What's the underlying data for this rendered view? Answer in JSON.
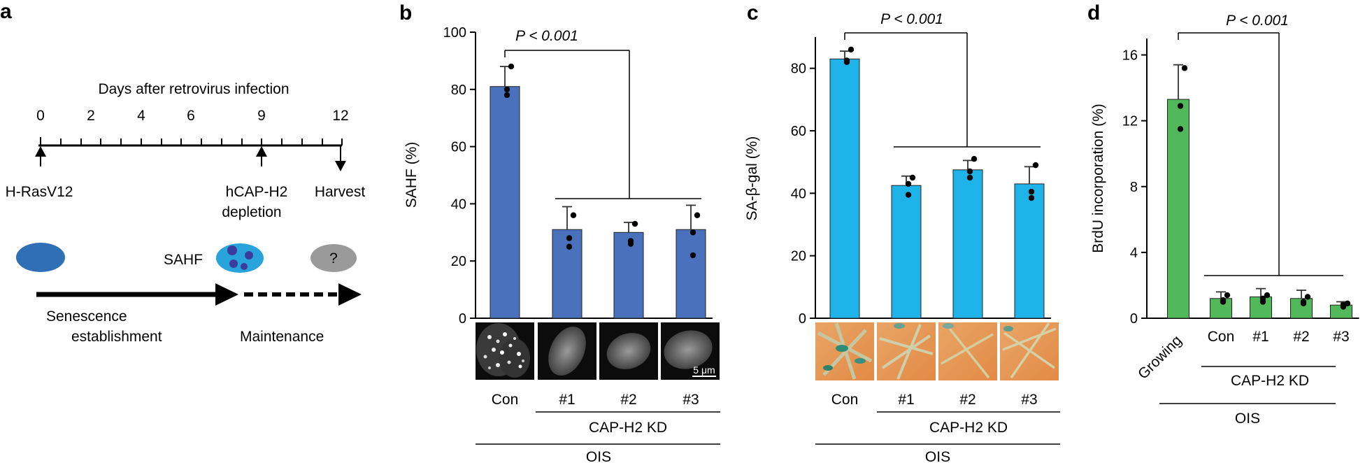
{
  "panels": {
    "a": {
      "label": "a",
      "timeline_title": "Days after retrovirus infection",
      "day_ticks": [
        "0",
        "2",
        "4",
        "6",
        "9",
        "12"
      ],
      "event_infection": "H-RasV12",
      "event_depletion": [
        "hCAP-H2",
        "depletion"
      ],
      "event_harvest": "Harvest",
      "sahf_label": "SAHF",
      "unknown_label": "?",
      "phase_establishment": [
        "Senescence",
        "establishment"
      ],
      "phase_maintenance": "Maintenance",
      "colors": {
        "nucleus": "#2e6fb6",
        "sahf_nucleus": "#29a3dc",
        "foci": "#3b3c9c",
        "unknown": "#9a9a9a"
      }
    },
    "b": {
      "label": "b",
      "bracket_label": "P < 0.001",
      "scale_bar": "5 μm"
    },
    "c": {
      "label": "c",
      "bracket_label": "P < 0.001"
    },
    "d": {
      "label": "d",
      "bracket_label": "P < 0.001"
    }
  },
  "group_labels": {
    "kd": "CAP-H2 KD",
    "ois": "OIS"
  },
  "chart_data": [
    {
      "panel": "b",
      "type": "bar",
      "categories": [
        "Con",
        "#1",
        "#2",
        "#3"
      ],
      "values": [
        81,
        31,
        30,
        31
      ],
      "errors": [
        7,
        8,
        3.5,
        8.5
      ],
      "points": [
        [
          88,
          80,
          78
        ],
        [
          36,
          28,
          25
        ],
        [
          33,
          26,
          27
        ],
        [
          36,
          30,
          22
        ]
      ],
      "ylabel": "SAHF (%)",
      "ylim": [
        0,
        100
      ],
      "yticks": [
        0,
        20,
        40,
        60,
        80,
        100
      ],
      "color": "#4a72bc"
    },
    {
      "panel": "c",
      "type": "bar",
      "categories": [
        "Con",
        "#1",
        "#2",
        "#3"
      ],
      "values": [
        83,
        42.5,
        47.5,
        43
      ],
      "errors": [
        2.5,
        3,
        3,
        5.5
      ],
      "points": [
        [
          86,
          82.5,
          82
        ],
        [
          45,
          43,
          39.5
        ],
        [
          51,
          47,
          45
        ],
        [
          49,
          40.5,
          38.5
        ]
      ],
      "ylabel": "SA-β-gal (%)",
      "ylim": [
        0,
        90
      ],
      "yticks": [
        0,
        20,
        40,
        60,
        80
      ],
      "color": "#1fb4e9"
    },
    {
      "panel": "d",
      "type": "bar",
      "categories": [
        "Growing",
        "Con",
        "#1",
        "#2",
        "#3"
      ],
      "values": [
        13.3,
        1.2,
        1.3,
        1.2,
        0.8
      ],
      "errors": [
        2.1,
        0.4,
        0.5,
        0.5,
        0.2
      ],
      "points": [
        [
          15.2,
          12.9,
          11.5
        ],
        [
          1.4,
          1.1,
          1.0
        ],
        [
          1.4,
          1.2,
          1.0
        ],
        [
          1.3,
          1.0,
          0.9
        ],
        [
          0.9,
          0.8,
          0.7
        ]
      ],
      "ylabel": "BrdU incorporation (%)",
      "ylim": [
        0,
        17
      ],
      "yticks": [
        0,
        4,
        8,
        12,
        16
      ],
      "color": "#52b95b"
    }
  ]
}
